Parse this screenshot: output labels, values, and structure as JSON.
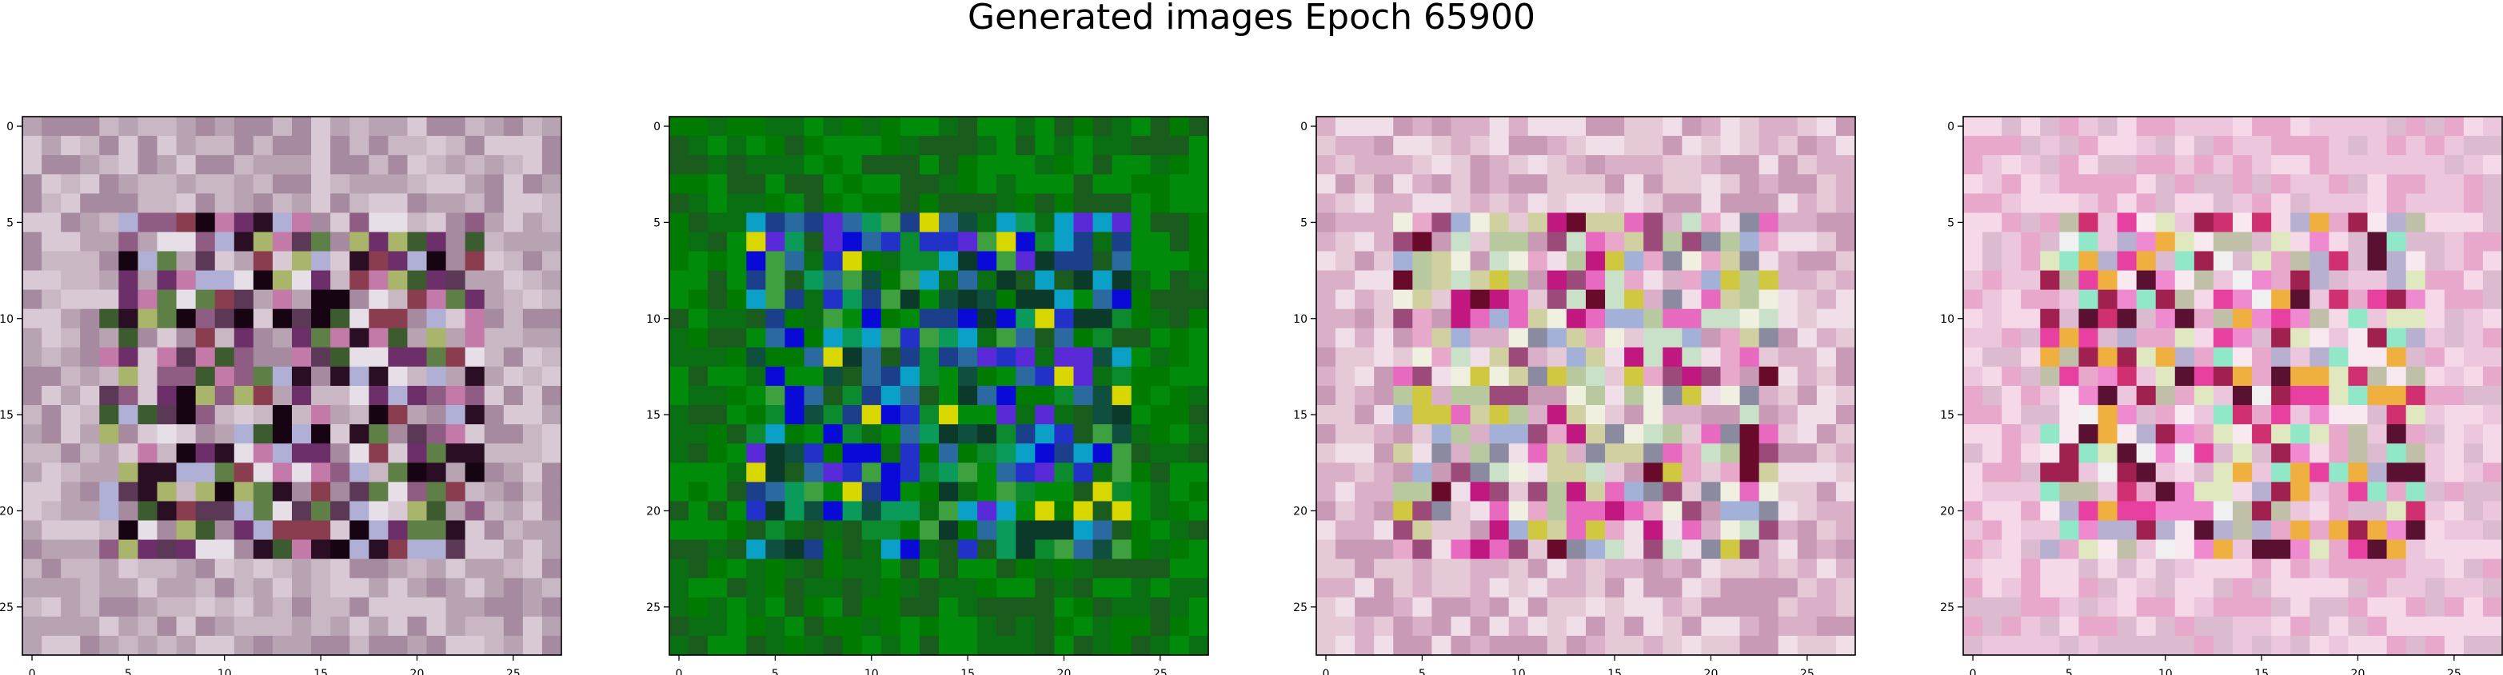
{
  "title": "Generated images Epoch 65900",
  "chart_data": {
    "type": "heatmap",
    "title": "Generated images Epoch 65900",
    "panel_count": 4,
    "grid_size": [
      28,
      28
    ],
    "xlim": [
      -0.5,
      27.5
    ],
    "ylim": [
      27.5,
      -0.5
    ],
    "x_ticks": [
      0,
      5,
      10,
      15,
      20,
      25
    ],
    "y_ticks": [
      0,
      5,
      10,
      15,
      20,
      25
    ],
    "panels": [
      {
        "name": "",
        "palette": [
          "#b8a3b3",
          "#c9b8c3",
          "#d9c9d4",
          "#a58aa0",
          "#8f5c84",
          "#5b3856",
          "#2a0f24",
          "#170412",
          "#5e7f46",
          "#3c5c2f",
          "#a8b56a",
          "#8a3d4f",
          "#e6dfe8",
          "#c47aa8",
          "#6c2f6a",
          "#b0b0d6"
        ]
      },
      {
        "name": "",
        "palette": [
          "#007a00",
          "#008c0a",
          "#0a6e12",
          "#1a5c1e",
          "#0b8a2e",
          "#0f4f3f",
          "#1c3f8c",
          "#2232c8",
          "#0a0ad8",
          "#5a2ad8",
          "#0aa0c8",
          "#d8d800",
          "#0c3a2a",
          "#3fa03f",
          "#0a9a5a",
          "#2a6aa0"
        ]
      },
      {
        "name": "",
        "palette": [
          "#e6c9d6",
          "#d9b0c8",
          "#f0dfe8",
          "#c89ab5",
          "#e8a8cc",
          "#b8c9a0",
          "#d0d0a0",
          "#c9e0c9",
          "#e86ac0",
          "#9c4a7a",
          "#a3b0d8",
          "#f0f0e0",
          "#c01880",
          "#6a0a2a",
          "#d0c840",
          "#8a8aa0"
        ]
      },
      {
        "name": "",
        "palette": [
          "#ecc6dc",
          "#f5d9e8",
          "#e8a8cc",
          "#dcbad0",
          "#f8e8f0",
          "#f08ad0",
          "#c0c0a8",
          "#e0e8c0",
          "#d03070",
          "#a02050",
          "#b8b0d0",
          "#f0f0f0",
          "#e840a0",
          "#5a1030",
          "#f0b040",
          "#90e8c8"
        ]
      }
    ]
  }
}
